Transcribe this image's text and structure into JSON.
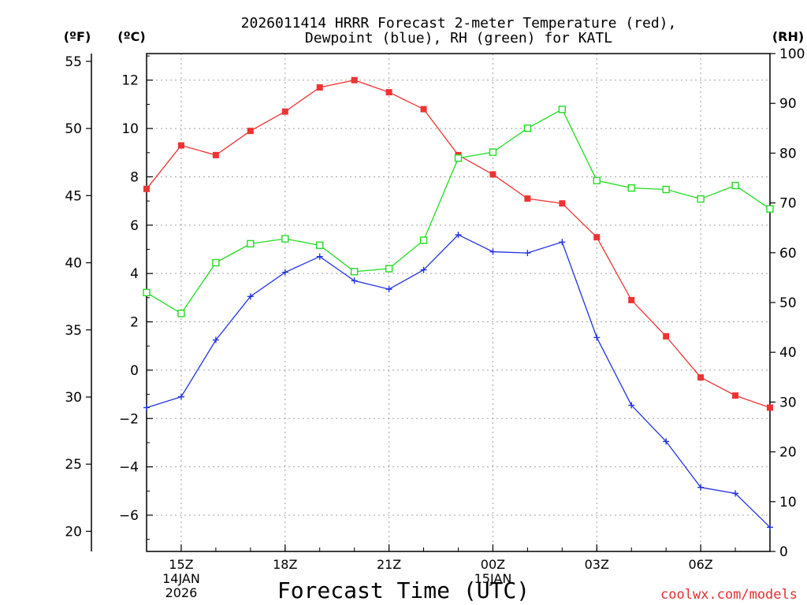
{
  "chart_data": {
    "type": "line",
    "title_line1": "2026011414 HRRR Forecast 2-meter Temperature (red),",
    "title_line2": "Dewpoint (blue), RH (green) for KATL",
    "xlabel": "Forecast Time (UTC)",
    "credit": "coolwx.com/models",
    "unit_f": "(ºF)",
    "unit_c": "(ºC)",
    "unit_rh": "(RH)",
    "forecast_hours": [
      14,
      15,
      16,
      17,
      18,
      19,
      20,
      21,
      22,
      23,
      24,
      25,
      26,
      27,
      28,
      29,
      30,
      31,
      32
    ],
    "x_range": [
      14,
      32
    ],
    "x_ticks": [
      {
        "hour": 15,
        "lines": [
          "15Z",
          "14JAN",
          "2026"
        ]
      },
      {
        "hour": 18,
        "lines": [
          "18Z"
        ]
      },
      {
        "hour": 21,
        "lines": [
          "21Z"
        ]
      },
      {
        "hour": 24,
        "lines": [
          "00Z",
          "15JAN"
        ]
      },
      {
        "hour": 27,
        "lines": [
          "03Z"
        ]
      },
      {
        "hour": 30,
        "lines": [
          "06Z"
        ]
      }
    ],
    "c_range": [
      -7.5,
      13.1
    ],
    "c_ticks": [
      "12",
      "10",
      "8",
      "6",
      "4",
      "2",
      "0",
      "−2",
      "−4",
      "−6"
    ],
    "f_ticks": [
      "55",
      "50",
      "45",
      "40",
      "35",
      "30",
      "25",
      "20"
    ],
    "rh_range": [
      0,
      100
    ],
    "rh_ticks": [
      "100",
      "90",
      "80",
      "70",
      "60",
      "50",
      "40",
      "30",
      "20",
      "10",
      "0"
    ],
    "grid": true,
    "series": [
      {
        "name": "Temperature",
        "units": "C",
        "color": "#ee3333",
        "marker": "filled-square",
        "values": [
          7.5,
          9.3,
          8.9,
          9.9,
          10.7,
          11.7,
          12.0,
          11.5,
          10.8,
          8.9,
          8.1,
          7.1,
          6.9,
          5.5,
          2.9,
          1.4,
          -0.3,
          -1.05,
          -1.55
        ]
      },
      {
        "name": "Dewpoint",
        "units": "C",
        "color": "#2233dd",
        "marker": "plus",
        "values": [
          -1.55,
          -1.1,
          1.25,
          3.05,
          4.05,
          4.7,
          3.7,
          3.35,
          4.15,
          5.6,
          4.9,
          4.85,
          5.3,
          1.35,
          -1.45,
          -2.95,
          -4.85,
          -5.1,
          -6.5
        ]
      },
      {
        "name": "RH",
        "units": "%",
        "color": "#22dd22",
        "marker": "open-square",
        "values": [
          52,
          47.8,
          58,
          61.8,
          62.8,
          61.5,
          56.2,
          56.8,
          62.5,
          79,
          80.2,
          85,
          88.8,
          74.5,
          73,
          72.7,
          70.8,
          73.5,
          68.8
        ]
      }
    ]
  }
}
